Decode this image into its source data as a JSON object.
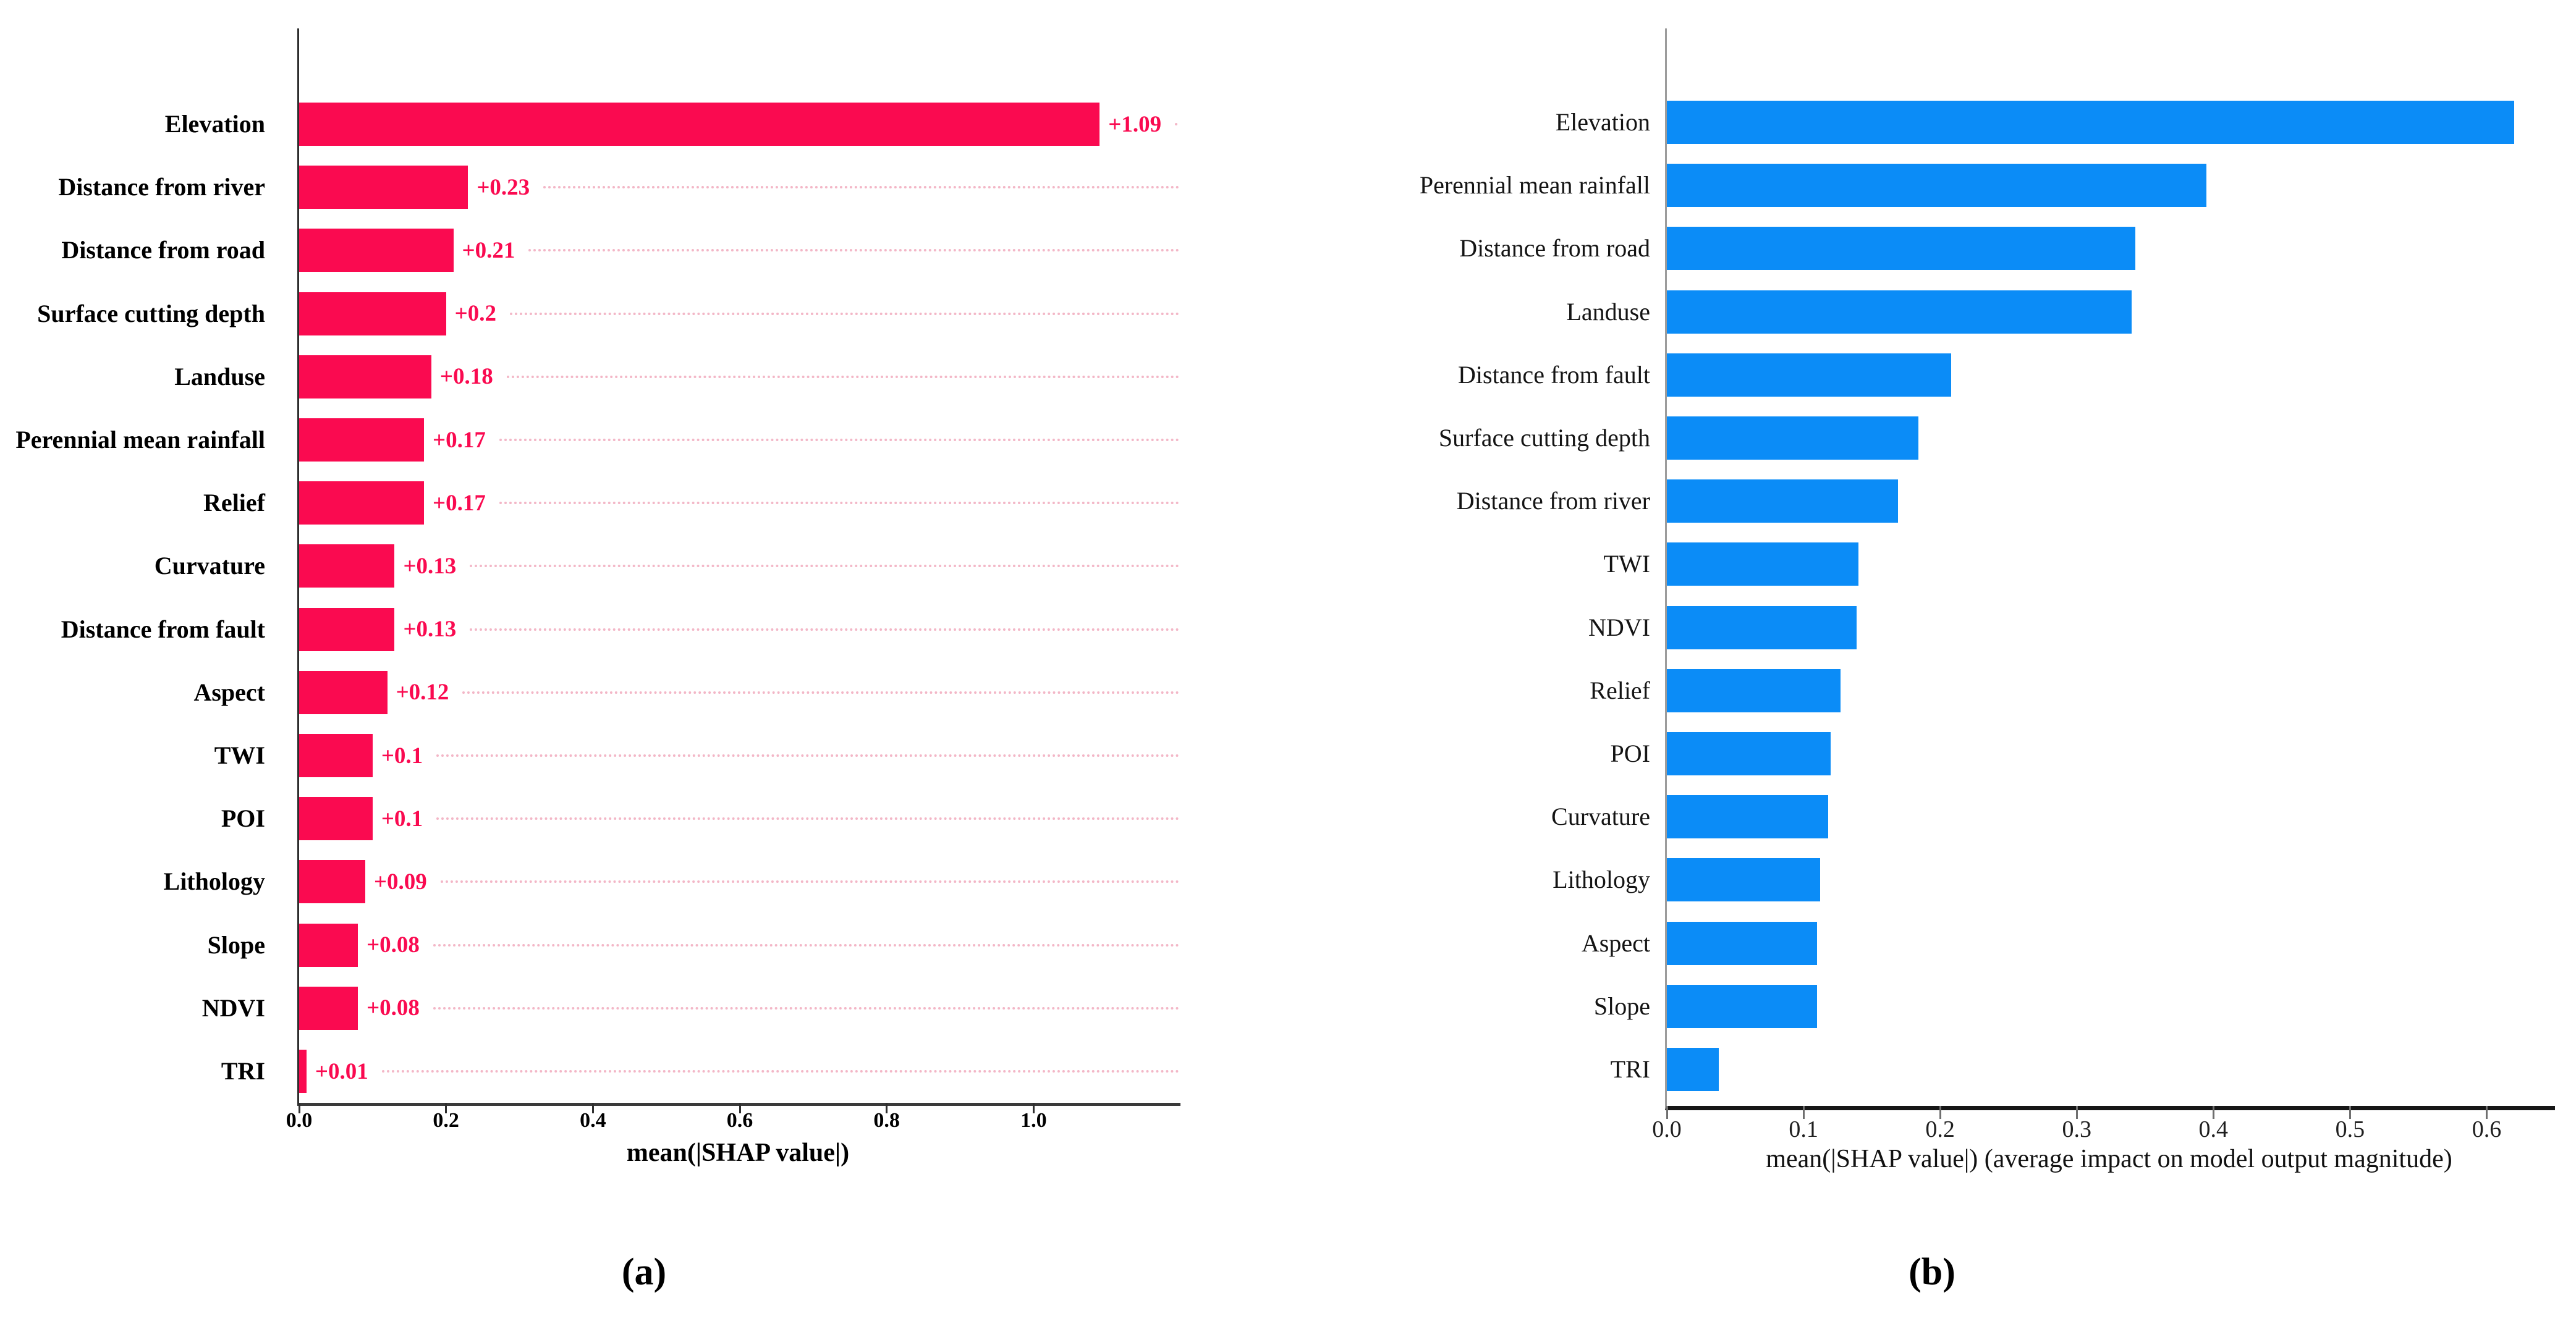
{
  "chart_data": [
    {
      "id": "a",
      "type": "bar",
      "orientation": "horizontal",
      "caption": "(a)",
      "xlabel": "mean(|SHAP value|)",
      "bar_color": "#fa0a50",
      "value_color": "#fa0a50",
      "dotted_line_color": "#f3b7c7",
      "grid": "dotted horizontal guide per row",
      "legend": null,
      "categories": [
        "Elevation",
        "Distance from river",
        "Distance from road",
        "Surface cutting depth",
        "Landuse",
        "Perennial mean rainfall",
        "Relief",
        "Curvature",
        "Distance from fault",
        "Aspect",
        "TWI",
        "POI",
        "Lithology",
        "Slope",
        "NDVI",
        "TRI"
      ],
      "values": [
        1.09,
        0.23,
        0.21,
        0.2,
        0.18,
        0.17,
        0.17,
        0.13,
        0.13,
        0.12,
        0.1,
        0.1,
        0.09,
        0.08,
        0.08,
        0.01
      ],
      "value_labels": [
        "+1.09",
        "+0.23",
        "+0.21",
        "+0.2",
        "+0.18",
        "+0.17",
        "+0.17",
        "+0.13",
        "+0.13",
        "+0.12",
        "+0.1",
        "+0.1",
        "+0.09",
        "+0.08",
        "+0.08",
        "+0.01"
      ],
      "xlim": [
        0,
        1.2
      ],
      "xticks": [
        0.0,
        0.2,
        0.4,
        0.6,
        0.8,
        1.0
      ],
      "xtick_labels": [
        "0.0",
        "0.2",
        "0.4",
        "0.6",
        "0.8",
        "1.0"
      ]
    },
    {
      "id": "b",
      "type": "bar",
      "orientation": "horizontal",
      "caption": "(b)",
      "xlabel": "mean(|SHAP value|) (average impact on model output magnitude)",
      "bar_color": "#0b8cf7",
      "value_color": null,
      "dotted_line_color": null,
      "grid": "off",
      "legend": null,
      "categories": [
        "Elevation",
        "Perennial mean rainfall",
        "Distance from road",
        "Landuse",
        "Distance from fault",
        "Surface cutting depth",
        "Distance from river",
        "TWI",
        "NDVI",
        "Relief",
        "POI",
        "Curvature",
        "Lithology",
        "Aspect",
        "Slope",
        "TRI"
      ],
      "values": [
        0.62,
        0.395,
        0.343,
        0.34,
        0.208,
        0.184,
        0.169,
        0.14,
        0.139,
        0.127,
        0.12,
        0.118,
        0.112,
        0.11,
        0.11,
        0.038
      ],
      "xlim": [
        0,
        0.65
      ],
      "xticks": [
        0.0,
        0.1,
        0.2,
        0.3,
        0.4,
        0.5,
        0.6
      ],
      "xtick_labels": [
        "0.0",
        "0.1",
        "0.2",
        "0.3",
        "0.4",
        "0.5",
        "0.6"
      ]
    }
  ]
}
